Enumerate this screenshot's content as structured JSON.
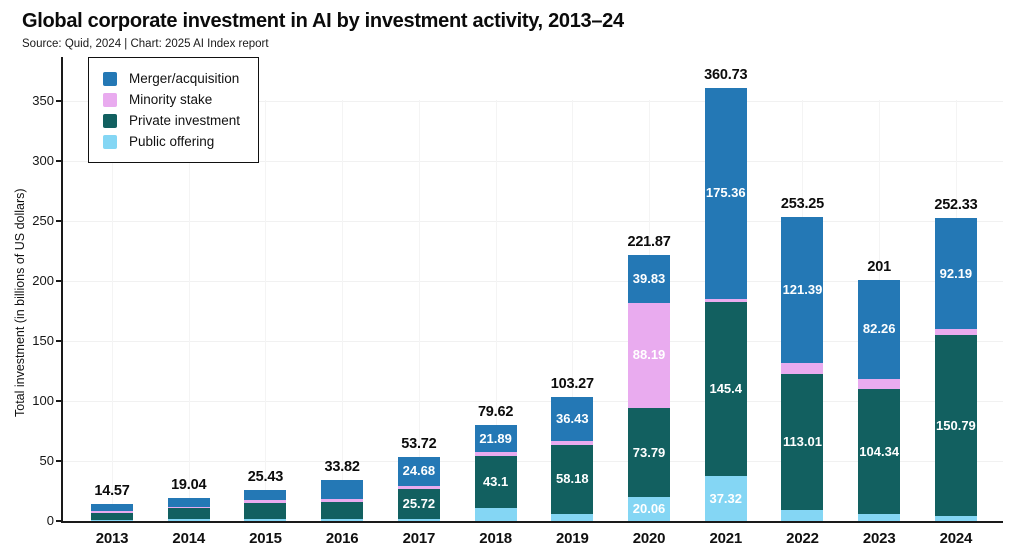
{
  "header": {
    "title": "Global corporate investment in AI by investment activity, 2013–24",
    "source": "Source: Quid, 2024 | Chart: 2025 AI Index report"
  },
  "chart_data": {
    "type": "bar",
    "stacked": true,
    "title": "Global corporate investment in AI by investment activity, 2013–24",
    "xlabel": "",
    "ylabel": "Total investment (in billions of US dollars)",
    "ylim": [
      0,
      350
    ],
    "yticks": [
      0,
      50,
      100,
      150,
      200,
      250,
      300,
      350
    ],
    "grid": "on",
    "categories": [
      "2013",
      "2014",
      "2015",
      "2016",
      "2017",
      "2018",
      "2019",
      "2020",
      "2021",
      "2022",
      "2023",
      "2024"
    ],
    "totals": [
      14.57,
      19.04,
      25.43,
      33.82,
      53.72,
      79.62,
      103.27,
      221.87,
      360.73,
      253.25,
      201,
      252.33
    ],
    "total_labels": [
      "14.57",
      "19.04",
      "25.43",
      "33.82",
      "53.72",
      "79.62",
      "103.27",
      "221.87",
      "360.73",
      "253.25",
      "201",
      "252.33"
    ],
    "stack_order_bottom_to_top": [
      "Public offering",
      "Private investment",
      "Minority stake",
      "Merger/acquisition"
    ],
    "series": [
      {
        "name": "Merger/acquisition",
        "color": "#2478b5",
        "values": [
          6.2,
          7.4,
          8.2,
          15.5,
          24.68,
          21.89,
          36.43,
          39.83,
          175.36,
          121.39,
          82.26,
          92.19
        ],
        "labels": [
          "",
          "",
          "",
          "",
          "24.68",
          "21.89",
          "36.43",
          "39.83",
          "175.36",
          "121.39",
          "82.26",
          "92.19"
        ]
      },
      {
        "name": "Minority stake",
        "color": "#e9abef",
        "values": [
          1.8,
          0.7,
          2.2,
          2.2,
          2.0,
          3.6,
          3.1,
          88.19,
          2.65,
          9.4,
          8.9,
          5.32
        ],
        "labels": [
          "",
          "",
          "",
          "",
          "",
          "",
          "",
          "88.19",
          "",
          "",
          "",
          ""
        ]
      },
      {
        "name": "Private investment",
        "color": "#126060",
        "values": [
          5.6,
          8.9,
          13.4,
          14.5,
          25.72,
          43.1,
          58.18,
          73.79,
          145.4,
          113.01,
          104.34,
          150.79
        ],
        "labels": [
          "",
          "",
          "",
          "",
          "25.72",
          "43.1",
          "58.18",
          "73.79",
          "145.4",
          "113.01",
          "104.34",
          "150.79"
        ]
      },
      {
        "name": "Public offering",
        "color": "#84d6f4",
        "values": [
          0.97,
          2.04,
          1.63,
          1.62,
          1.32,
          11.03,
          5.56,
          20.06,
          37.32,
          9.45,
          5.5,
          4.03
        ],
        "labels": [
          "",
          "",
          "",
          "",
          "",
          "",
          "",
          "20.06",
          "37.32",
          "",
          "",
          ""
        ]
      }
    ],
    "legend": {
      "position": "top-left",
      "entries": [
        {
          "label": "Merger/acquisition",
          "color": "#2478b5"
        },
        {
          "label": "Minority stake",
          "color": "#e9abef"
        },
        {
          "label": "Private investment",
          "color": "#126060"
        },
        {
          "label": "Public offering",
          "color": "#84d6f4"
        }
      ]
    },
    "colors": {
      "axis": "#1a1a1a",
      "grid": "#f2f2f2",
      "total_label": "#0c0c0c",
      "segment_label": "#ffffff"
    }
  }
}
